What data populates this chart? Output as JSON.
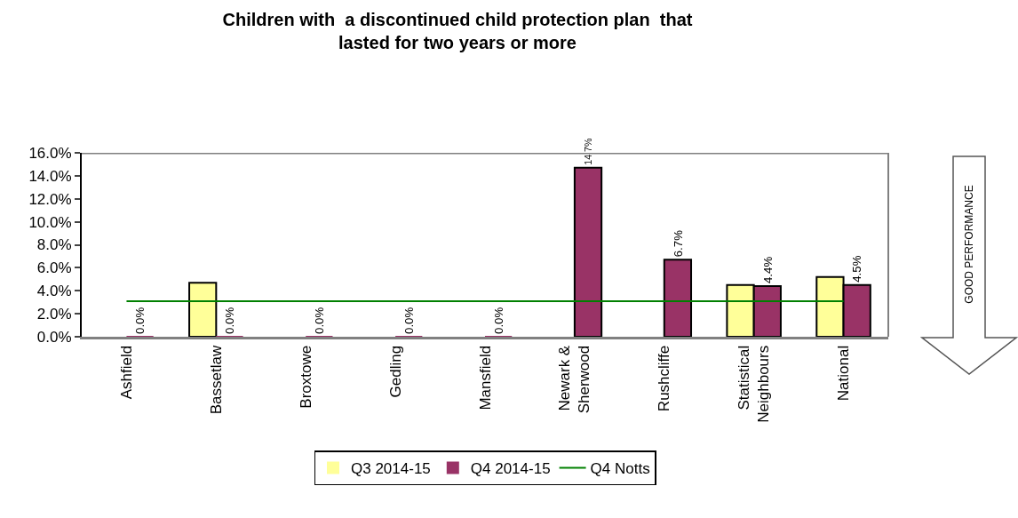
{
  "chart_data": {
    "type": "bar",
    "title": "Children with  a discontinued child protection plan  that\nlasted for two years or more",
    "categories": [
      "Ashfield",
      "Bassetlaw",
      "Broxtowe",
      "Gedling",
      "Mansfield",
      "Newark &\nSherwood",
      "Rushcliffe",
      "Statistical\nNeighbours",
      "National"
    ],
    "series": [
      {
        "name": "Q3 2014-15",
        "color": "#ffff99",
        "values": [
          null,
          4.7,
          null,
          null,
          null,
          null,
          null,
          4.5,
          5.2
        ]
      },
      {
        "name": "Q4 2014-15",
        "color": "#993366",
        "values": [
          0,
          0,
          0,
          0,
          0,
          14.7,
          6.7,
          4.4,
          4.5
        ],
        "value_labels": [
          "0.0%",
          "0.0%",
          "0.0%",
          "0.0%",
          "0.0%",
          "14.7%",
          "6.7%",
          "4.4%",
          "4.5%"
        ]
      },
      {
        "name": "Q4 Notts",
        "type": "line",
        "color": "#008000",
        "values": [
          3.1,
          3.1,
          3.1,
          3.1,
          3.1,
          3.1,
          3.1,
          3.1,
          3.1
        ]
      }
    ],
    "ylim": [
      0,
      16
    ],
    "yticks": [
      {
        "value": 0,
        "label": "0.0%"
      },
      {
        "value": 2,
        "label": "2.0%"
      },
      {
        "value": 4,
        "label": "4.0%"
      },
      {
        "value": 6,
        "label": "6.0%"
      },
      {
        "value": 8,
        "label": "8.0%"
      },
      {
        "value": 10,
        "label": "10.0%"
      },
      {
        "value": 12,
        "label": "12.0%"
      },
      {
        "value": 14,
        "label": "14.0%"
      },
      {
        "value": 16,
        "label": "16.0%"
      }
    ],
    "grid": false,
    "legend": "bottom",
    "marker": "none",
    "line_style": "solid",
    "annotations": [
      "GOOD PERFORMANCE"
    ]
  }
}
